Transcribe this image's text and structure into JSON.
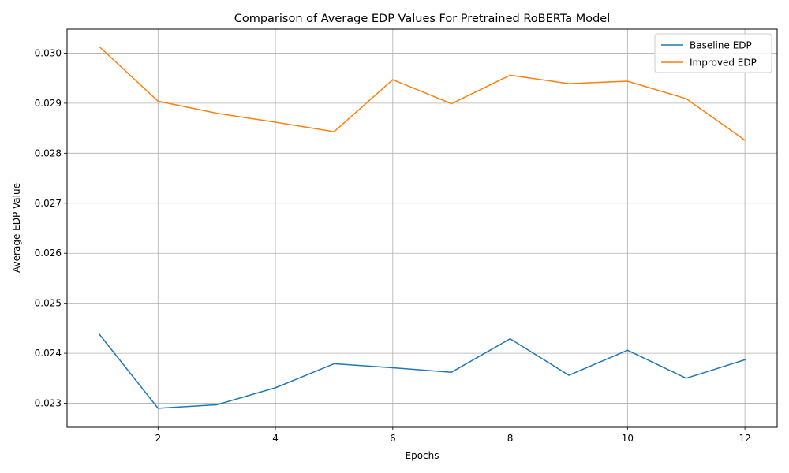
{
  "chart_data": {
    "type": "line",
    "title": "Comparison of Average EDP Values For Pretrained RoBERTa Model",
    "xlabel": "Epochs",
    "ylabel": "Average EDP Value",
    "x": [
      1,
      2,
      3,
      4,
      5,
      6,
      7,
      8,
      9,
      10,
      11,
      12
    ],
    "xlim": [
      0.45,
      12.55
    ],
    "ylim": [
      0.02252,
      0.03048
    ],
    "xticks": [
      2,
      4,
      6,
      8,
      10,
      12
    ],
    "xtick_labels": [
      "2",
      "4",
      "6",
      "8",
      "10",
      "12"
    ],
    "yticks": [
      0.023,
      0.024,
      0.025,
      0.026,
      0.027,
      0.028,
      0.029,
      0.03
    ],
    "ytick_labels": [
      "0.023",
      "0.024",
      "0.025",
      "0.026",
      "0.027",
      "0.028",
      "0.029",
      "0.030"
    ],
    "grid": true,
    "legend_position": "top-right",
    "series": [
      {
        "name": "Baseline EDP",
        "color": "#1f77b4",
        "values": [
          0.02438,
          0.0229,
          0.02297,
          0.02331,
          0.02379,
          0.02371,
          0.02362,
          0.02429,
          0.02356,
          0.02406,
          0.0235,
          0.02387
        ]
      },
      {
        "name": "Improved EDP",
        "color": "#ff7f0e",
        "values": [
          0.03013,
          0.02904,
          0.0288,
          0.02862,
          0.02843,
          0.02947,
          0.02899,
          0.02956,
          0.02939,
          0.02944,
          0.02909,
          0.02826
        ]
      }
    ]
  }
}
